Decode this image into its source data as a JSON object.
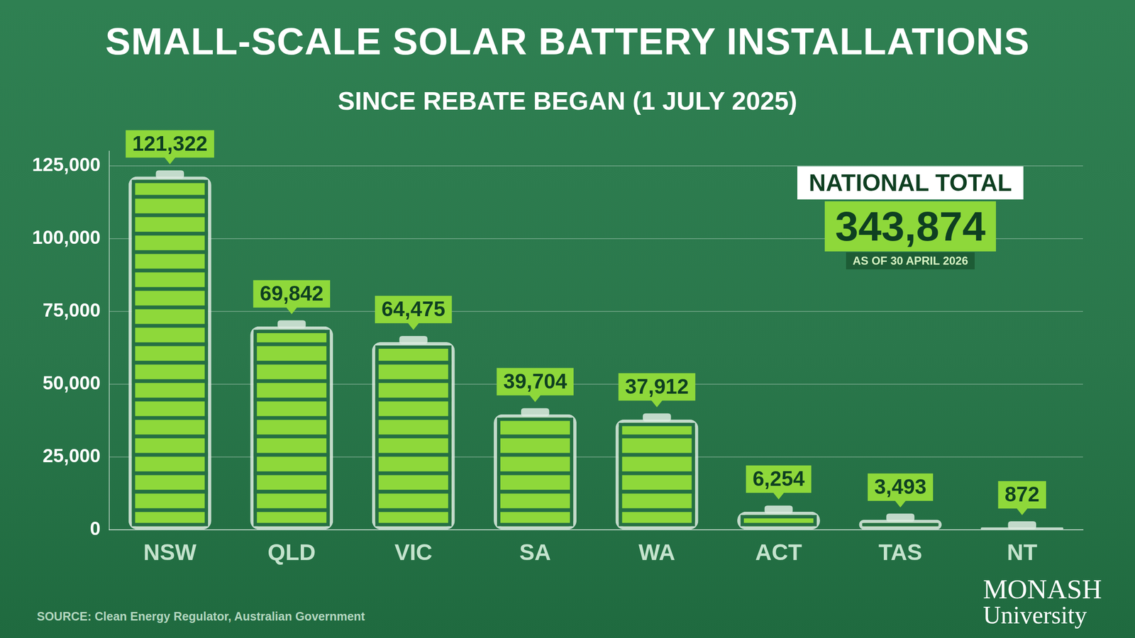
{
  "chart_data": {
    "type": "bar",
    "title": "SMALL-SCALE SOLAR BATTERY INSTALLATIONS",
    "subtitle": "SINCE REBATE BEGAN (1 JULY 2025)",
    "categories": [
      "NSW",
      "QLD",
      "VIC",
      "SA",
      "WA",
      "ACT",
      "TAS",
      "NT"
    ],
    "values": [
      121322,
      69842,
      64475,
      39704,
      37912,
      6254,
      3493,
      872
    ],
    "value_labels": [
      "121,322",
      "69,842",
      "64,475",
      "39,704",
      "37,912",
      "6,254",
      "3,493",
      "872"
    ],
    "color": "#8ed83a",
    "ylim": [
      0,
      130000
    ],
    "yticks": [
      0,
      {
        "value": 25000,
        "label": "25,000"
      },
      {
        "value": 50000,
        "label": "50,000"
      },
      {
        "value": 75000,
        "label": "75,000"
      },
      {
        "value": 100000,
        "label": "100,000"
      },
      {
        "value": 125000,
        "label": "125,000"
      }
    ],
    "grid": true,
    "data_labels": true,
    "annotation": {
      "title": "NATIONAL TOTAL",
      "value": 343874,
      "date": "AS OF 30 APRIL 2026"
    },
    "source": "SOURCE: Clean Energy Regulator, Australian Government",
    "logo": [
      "MONASH",
      "University"
    ]
  }
}
